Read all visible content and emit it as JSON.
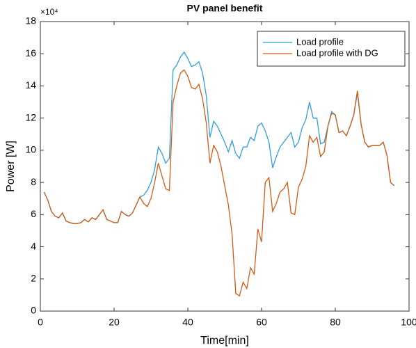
{
  "chart_data": {
    "type": "line",
    "title": "PV panel benefit",
    "x_label": "Time[min]",
    "y_label": "Power [W]",
    "y_multiplier": "×10⁴",
    "x": [
      1,
      2,
      3,
      4,
      5,
      6,
      7,
      8,
      9,
      10,
      11,
      12,
      13,
      14,
      15,
      16,
      17,
      18,
      19,
      20,
      21,
      22,
      23,
      24,
      25,
      26,
      27,
      28,
      29,
      30,
      31,
      32,
      33,
      34,
      35,
      36,
      37,
      38,
      39,
      40,
      41,
      42,
      43,
      44,
      45,
      46,
      47,
      48,
      49,
      50,
      51,
      52,
      53,
      54,
      55,
      56,
      57,
      58,
      59,
      60,
      61,
      62,
      63,
      64,
      65,
      66,
      67,
      68,
      69,
      70,
      71,
      72,
      73,
      74,
      75,
      76,
      77,
      78,
      79,
      80,
      81,
      82,
      83,
      84,
      85,
      86,
      87,
      88,
      89,
      90,
      91,
      92,
      93,
      94,
      95,
      96
    ],
    "series": [
      {
        "name": "Load profile",
        "color": "#2f9ed8",
        "values": [
          7.4,
          6.9,
          6.2,
          5.9,
          5.8,
          6.1,
          5.6,
          5.5,
          5.45,
          5.45,
          5.5,
          5.7,
          5.55,
          5.8,
          5.7,
          6.0,
          6.3,
          5.7,
          5.6,
          5.5,
          5.5,
          6.2,
          6.0,
          5.9,
          6.1,
          6.6,
          7.1,
          7.2,
          7.5,
          8.0,
          8.8,
          10.2,
          9.8,
          9.2,
          9.5,
          15.0,
          15.3,
          15.8,
          16.1,
          15.7,
          15.2,
          15.3,
          15.5,
          14.8,
          13.4,
          10.8,
          11.8,
          11.5,
          11.0,
          10.5,
          9.9,
          10.6,
          9.8,
          9.5,
          10.2,
          10.2,
          10.8,
          10.6,
          11.5,
          11.7,
          11.2,
          10.5,
          8.9,
          9.6,
          10.2,
          10.5,
          10.8,
          11.1,
          10.2,
          10.5,
          11.4,
          11.9,
          13.0,
          12.0,
          12.0,
          10.4,
          10.5,
          11.5,
          12.4,
          12.2,
          11.1,
          11.2,
          10.9,
          11.5,
          12.2,
          13.6,
          11.6,
          10.5,
          10.2,
          10.3,
          10.3,
          10.3,
          10.5,
          9.7,
          8.0,
          7.8
        ]
      },
      {
        "name": "Load profile with DG",
        "color": "#d25a12",
        "values": [
          7.4,
          6.9,
          6.2,
          5.9,
          5.8,
          6.1,
          5.6,
          5.5,
          5.45,
          5.45,
          5.5,
          5.7,
          5.55,
          5.8,
          5.7,
          6.0,
          6.3,
          5.7,
          5.6,
          5.5,
          5.5,
          6.2,
          6.0,
          5.9,
          6.1,
          6.6,
          7.1,
          6.7,
          6.5,
          7.0,
          8.0,
          9.2,
          8.4,
          7.6,
          7.5,
          13.0,
          14.0,
          14.8,
          15.0,
          14.6,
          13.9,
          13.8,
          14.1,
          13.2,
          11.7,
          9.2,
          10.3,
          9.9,
          9.0,
          7.8,
          6.6,
          4.8,
          1.1,
          0.95,
          1.8,
          1.4,
          2.7,
          2.3,
          5.1,
          4.3,
          8.0,
          8.3,
          6.2,
          6.7,
          7.4,
          7.6,
          8.0,
          6.1,
          6.0,
          7.7,
          8.2,
          9.0,
          10.9,
          10.5,
          10.8,
          9.6,
          9.9,
          11.5,
          12.3,
          12.2,
          11.1,
          11.2,
          10.9,
          11.5,
          12.2,
          13.7,
          11.6,
          10.5,
          10.2,
          10.3,
          10.3,
          10.3,
          10.5,
          9.7,
          8.0,
          7.8
        ]
      }
    ],
    "xlim": [
      0,
      100
    ],
    "xticks": [
      0,
      20,
      40,
      60,
      80,
      100
    ],
    "ylim": [
      0,
      18
    ],
    "yticks": [
      0,
      2,
      4,
      6,
      8,
      10,
      12,
      14,
      16,
      18
    ],
    "legend": "top-right"
  }
}
